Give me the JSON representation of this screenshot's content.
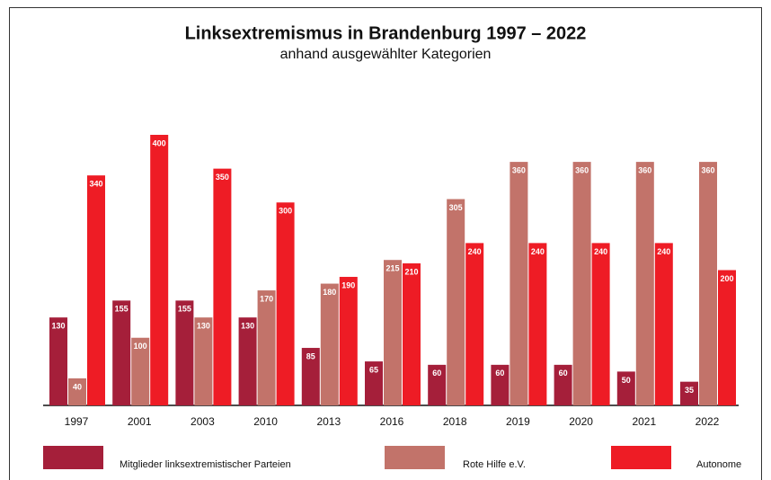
{
  "chart_data": {
    "type": "bar",
    "title": "Linksextremismus in Brandenburg 1997 – 2022",
    "subtitle": "anhand ausgewählter Kategorien",
    "categories": [
      "1997",
      "2001",
      "2003",
      "2010",
      "2013",
      "2016",
      "2018",
      "2019",
      "2020",
      "2021",
      "2022"
    ],
    "series": [
      {
        "name": "Mitglieder linksextremistischer Parteien",
        "color": "#a51f3a",
        "values": [
          130,
          155,
          155,
          130,
          85,
          65,
          60,
          60,
          60,
          50,
          35
        ]
      },
      {
        "name": "Rote Hilfe e.V.",
        "color": "#c2736a",
        "values": [
          40,
          100,
          130,
          170,
          180,
          215,
          305,
          360,
          360,
          360,
          360
        ]
      },
      {
        "name": "Autonome",
        "color": "#ee1c25",
        "values": [
          340,
          400,
          350,
          300,
          190,
          210,
          240,
          240,
          240,
          240,
          200
        ]
      }
    ],
    "legend": "bottom"
  }
}
